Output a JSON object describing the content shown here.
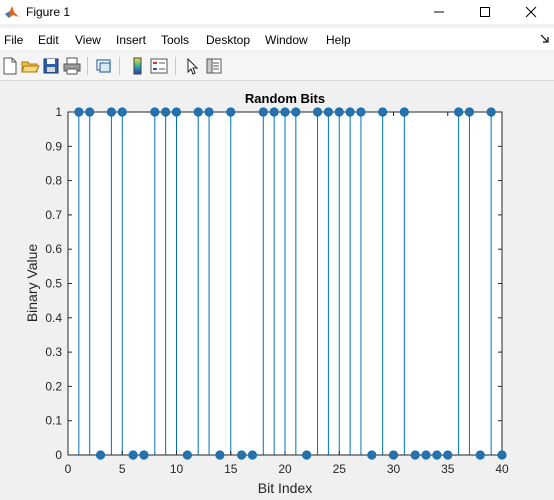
{
  "window": {
    "title": "Figure 1",
    "app_icon": "matlab-icon",
    "controls": [
      "minimize-icon",
      "maximize-icon",
      "close-icon"
    ]
  },
  "menubar": {
    "items": [
      "File",
      "Edit",
      "View",
      "Insert",
      "Tools",
      "Desktop",
      "Window",
      "Help"
    ],
    "dock_icon": "dock-arrow-icon"
  },
  "toolbar": {
    "buttons": [
      "new-figure-icon",
      "open-file-icon",
      "save-icon",
      "print-icon",
      "link-plot-icon",
      "colorbar-icon",
      "legend-icon",
      "edit-plot-arrow-icon",
      "property-inspector-icon"
    ]
  },
  "chart_data": {
    "type": "stem",
    "title": "Random Bits",
    "xlabel": "Bit Index",
    "ylabel": "Binary Value",
    "xlim": [
      0,
      40
    ],
    "ylim": [
      0,
      1
    ],
    "xticks": [
      0,
      5,
      10,
      15,
      20,
      25,
      30,
      35,
      40
    ],
    "yticks": [
      0,
      0.1,
      0.2,
      0.3,
      0.4,
      0.5,
      0.6,
      0.7,
      0.8,
      0.9,
      1
    ],
    "x": [
      1,
      2,
      3,
      4,
      5,
      6,
      7,
      8,
      9,
      10,
      11,
      12,
      13,
      14,
      15,
      16,
      17,
      18,
      19,
      20,
      21,
      22,
      23,
      24,
      25,
      26,
      27,
      28,
      29,
      30,
      31,
      32,
      33,
      34,
      35,
      36,
      37,
      38,
      39,
      40
    ],
    "values": [
      1,
      1,
      0,
      1,
      1,
      0,
      0,
      1,
      1,
      1,
      0,
      1,
      1,
      0,
      1,
      0,
      0,
      1,
      1,
      1,
      1,
      0,
      1,
      1,
      1,
      1,
      1,
      0,
      1,
      0,
      1,
      0,
      0,
      0,
      0,
      1,
      1,
      0,
      1,
      0
    ],
    "grid": false,
    "marker_color": "#2d6fa6",
    "line_color": "#0072bd"
  }
}
